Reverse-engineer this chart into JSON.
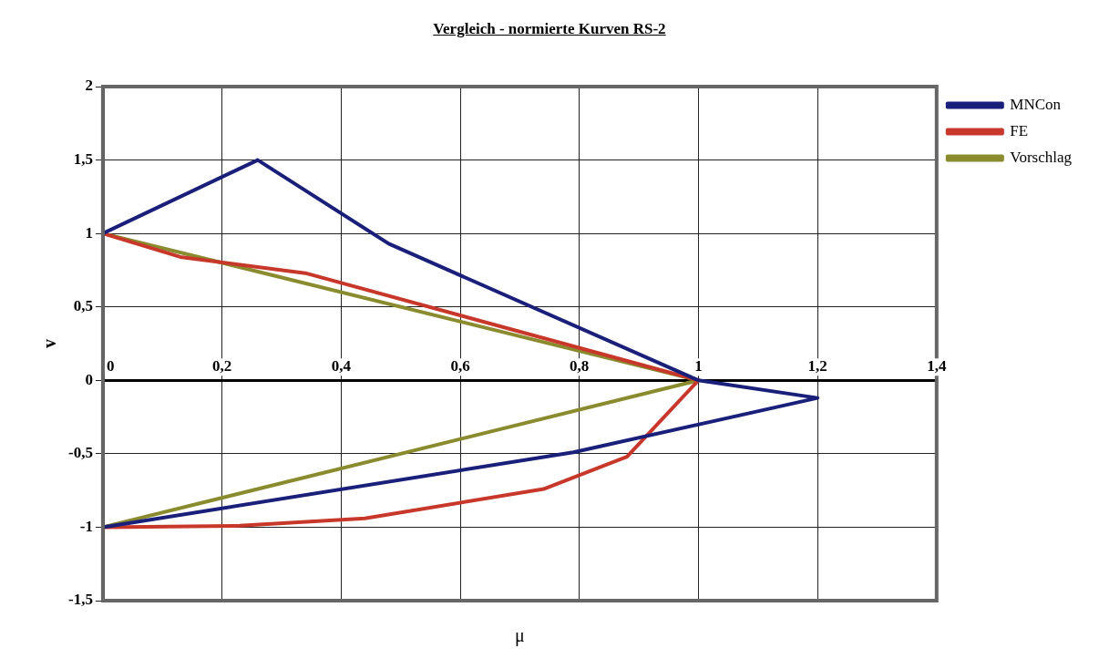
{
  "chart_data": {
    "type": "line",
    "title": "Vergleich - normierte Kurven RS-2",
    "xlabel": "μ",
    "ylabel": "v",
    "xlim": [
      0,
      1.4
    ],
    "xticks": [
      {
        "value": 0,
        "label": "0"
      },
      {
        "value": 0.2,
        "label": "0,2"
      },
      {
        "value": 0.4,
        "label": "0,4"
      },
      {
        "value": 0.6,
        "label": "0,6"
      },
      {
        "value": 0.8,
        "label": "0,8"
      },
      {
        "value": 1,
        "label": "1"
      },
      {
        "value": 1.2,
        "label": "1,2"
      },
      {
        "value": 1.4,
        "label": "1,4"
      }
    ],
    "ylim": [
      -1.5,
      2
    ],
    "yticks": [
      {
        "value": -1.5,
        "label": "-1,5"
      },
      {
        "value": -1,
        "label": "-1"
      },
      {
        "value": -0.5,
        "label": "-0,5"
      },
      {
        "value": 0,
        "label": "0"
      },
      {
        "value": 0.5,
        "label": "0,5"
      },
      {
        "value": 1,
        "label": "1"
      },
      {
        "value": 1.5,
        "label": "1,5"
      },
      {
        "value": 2,
        "label": "2"
      }
    ],
    "grid": true,
    "legend": "right",
    "marker": "none",
    "line_style": "solid",
    "series": [
      {
        "name": "MNCon",
        "color": "#1a1f7a",
        "x": [
          0,
          0.26,
          0.48,
          1,
          1.2,
          0.79,
          0
        ],
        "values": [
          1,
          1.5,
          0.93,
          0,
          -0.12,
          -0.49,
          -1
        ]
      },
      {
        "name": "FE",
        "color": "#c8382a",
        "x": [
          0,
          0.13,
          0.34,
          1,
          0.88,
          0.74,
          0.44,
          0.23,
          0
        ],
        "values": [
          1,
          0.84,
          0.73,
          0,
          -0.52,
          -0.74,
          -0.94,
          -0.99,
          -1
        ]
      },
      {
        "name": "Vorschlag",
        "color": "#8a8a2e",
        "x": [
          0,
          1,
          0
        ],
        "values": [
          1,
          0,
          -1
        ]
      }
    ]
  }
}
